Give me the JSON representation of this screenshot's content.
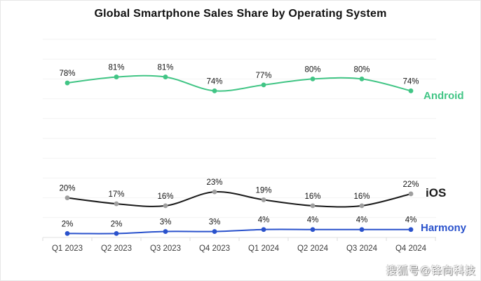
{
  "chart_data": {
    "type": "line",
    "title": "Global Smartphone Sales Share by Operating System",
    "categories": [
      "Q1 2023",
      "Q2 2023",
      "Q3 2023",
      "Q4 2023",
      "Q1 2024",
      "Q2 2024",
      "Q3 2024",
      "Q4 2024"
    ],
    "series": [
      {
        "name": "Android",
        "color": "#41c585",
        "marker_color": "#41c585",
        "values": [
          78,
          81,
          81,
          74,
          77,
          80,
          80,
          74
        ]
      },
      {
        "name": "iOS",
        "color": "#1a1a1a",
        "marker_color": "#9f9f9f",
        "values": [
          20,
          17,
          16,
          23,
          19,
          16,
          16,
          22
        ]
      },
      {
        "name": "Harmony",
        "color": "#2a52cc",
        "marker_color": "#2a52cc",
        "values": [
          2,
          2,
          3,
          3,
          4,
          4,
          4,
          4
        ]
      }
    ],
    "ylim": [
      0,
      100
    ],
    "grid": true,
    "grid_step": 10,
    "point_label_format": "{v}%",
    "legend_position": "right-of-line-end",
    "grid_color": "#f2f2f2",
    "axis_color": "#e2e2e2",
    "tick_color": "#dcdcdc"
  },
  "watermark": "搜狐号@锋向科技"
}
